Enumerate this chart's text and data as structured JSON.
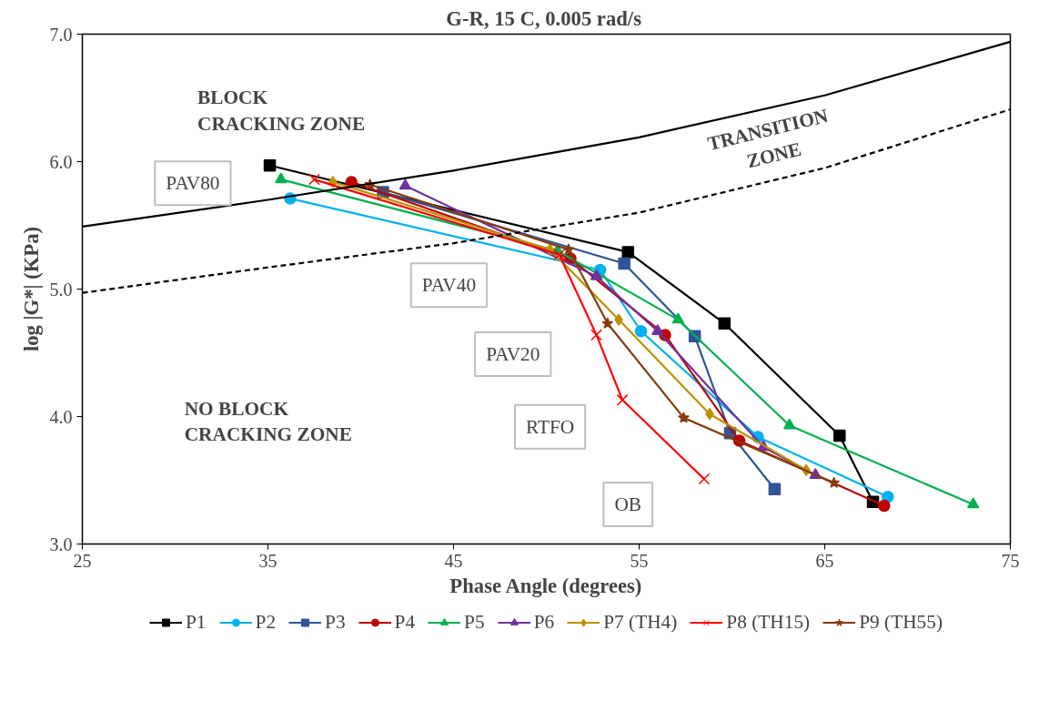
{
  "chart_data": {
    "type": "line",
    "title": "G-R,  15 C, 0.005 rad/s",
    "xlabel": "Phase Angle (degrees)",
    "ylabel": "log |G*| (KPa)",
    "xlim": [
      25,
      75
    ],
    "xticks": [
      25,
      35,
      45,
      55,
      65,
      75
    ],
    "ylim": [
      3,
      7
    ],
    "yticks": [
      {
        "value": 3,
        "label": "3.0"
      },
      {
        "value": 4,
        "label": "4.0"
      },
      {
        "value": 5,
        "label": "5.0"
      },
      {
        "value": 6,
        "label": "6.0"
      },
      {
        "value": 7,
        "label": "7.0"
      }
    ],
    "grid": false,
    "legend": "bottom",
    "series": [
      {
        "name": "P1",
        "color": "#000000",
        "marker": "square",
        "x": [
          35.1,
          54.4,
          59.6,
          65.8,
          67.6
        ],
        "values": [
          5.97,
          5.29,
          4.73,
          3.85,
          3.33
        ]
      },
      {
        "name": "P2",
        "color": "#00b0f0",
        "marker": "circle",
        "x": [
          36.2,
          52.9,
          55.1,
          61.4,
          68.4
        ],
        "values": [
          5.71,
          5.15,
          4.67,
          3.84,
          3.37
        ]
      },
      {
        "name": "P3",
        "color": "#2f5597",
        "marker": "square",
        "x": [
          41.2,
          54.2,
          58.0,
          59.9,
          62.3
        ],
        "values": [
          5.76,
          5.2,
          4.63,
          3.87,
          3.43
        ]
      },
      {
        "name": "P4",
        "color": "#c00000",
        "marker": "circle",
        "x": [
          39.5,
          51.3,
          56.4,
          60.4,
          68.2
        ],
        "values": [
          5.84,
          5.24,
          4.64,
          3.81,
          3.3
        ]
      },
      {
        "name": "P5",
        "color": "#00b050",
        "marker": "triangle",
        "x": [
          35.7,
          50.6,
          57.1,
          63.1,
          73.0
        ],
        "values": [
          5.86,
          5.3,
          4.76,
          3.93,
          3.31
        ]
      },
      {
        "name": "P6",
        "color": "#7030a0",
        "marker": "triangle",
        "x": [
          42.4,
          52.7,
          56.0,
          61.7,
          64.5
        ],
        "values": [
          5.81,
          5.1,
          4.67,
          3.76,
          3.54
        ]
      },
      {
        "name": "P7 (TH4)",
        "color": "#bf9000",
        "marker": "diamond",
        "x": [
          38.5,
          50.2,
          53.9,
          58.8,
          64.0
        ],
        "values": [
          5.84,
          5.31,
          4.76,
          4.02,
          3.58
        ]
      },
      {
        "name": "P8 (TH15)",
        "color": "#ff0000",
        "marker": "cross",
        "x": [
          37.5,
          50.7,
          52.7,
          54.1,
          58.5
        ],
        "values": [
          5.86,
          5.27,
          4.64,
          4.13,
          3.51
        ]
      },
      {
        "name": "P9 (TH55)",
        "color": "#843c0c",
        "marker": "star",
        "x": [
          40.5,
          51.2,
          53.3,
          57.4,
          65.5
        ],
        "values": [
          5.82,
          5.31,
          4.73,
          3.99,
          3.48
        ]
      },
      {
        "color": "#000000",
        "marker": "none",
        "line_style": "solid",
        "x": [
          25,
          35,
          45,
          55,
          65,
          75
        ],
        "values": [
          5.49,
          5.7,
          5.93,
          6.19,
          6.52,
          6.94
        ]
      },
      {
        "color": "#000000",
        "marker": "none",
        "line_style": "dashed",
        "x": [
          25,
          35,
          45,
          55,
          65,
          75
        ],
        "values": [
          4.97,
          5.17,
          5.36,
          5.6,
          5.95,
          6.41
        ]
      }
    ],
    "annotations": [
      "BLOCK\nCRACKING ZONE",
      "TRANSITION\nZONE",
      "NO BLOCK\nCRACKING ZONE",
      "PAV80",
      "PAV40",
      "PAV20",
      "RTFO",
      "OB"
    ]
  }
}
